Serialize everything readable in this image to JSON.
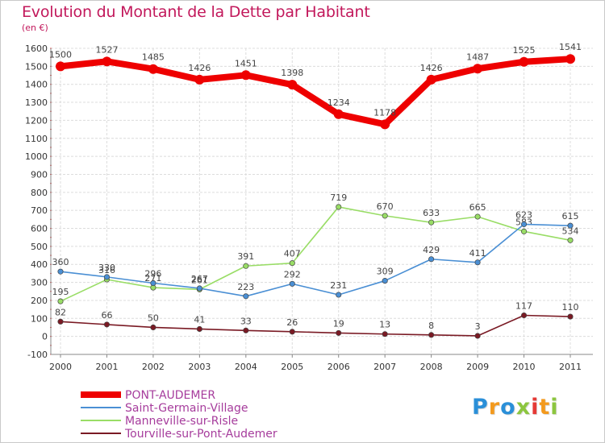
{
  "chart_data": {
    "type": "line",
    "title": "Evolution du Montant de la Dette par Habitant",
    "subtitle": "(en €)",
    "categories": [
      "2000",
      "2001",
      "2002",
      "2003",
      "2004",
      "2005",
      "2006",
      "2007",
      "2008",
      "2009",
      "2010",
      "2011"
    ],
    "ylim": [
      -100,
      1600
    ],
    "yticks": [
      -100,
      0,
      100,
      200,
      300,
      400,
      500,
      600,
      700,
      800,
      900,
      1000,
      1100,
      1200,
      1300,
      1400,
      1500,
      1600
    ],
    "grid": true,
    "legend_position": "bottom-left",
    "series": [
      {
        "name": "PONT-AUDEMER",
        "color": "#ee0000",
        "values": [
          1500,
          1527,
          1485,
          1426,
          1451,
          1398,
          1234,
          1178,
          1426,
          1487,
          1525,
          1541
        ]
      },
      {
        "name": "Saint-Germain-Village",
        "color": "#4a8fd4",
        "values": [
          360,
          330,
          296,
          267,
          223,
          292,
          231,
          309,
          429,
          411,
          623,
          615
        ]
      },
      {
        "name": "Manneville-sur-Risle",
        "color": "#99dd66",
        "values": [
          195,
          316,
          271,
          261,
          391,
          407,
          719,
          670,
          633,
          665,
          583,
          534
        ]
      },
      {
        "name": "Tourville-sur-Pont-Audemer",
        "color": "#7a1a24",
        "values": [
          82,
          66,
          50,
          41,
          33,
          26,
          19,
          13,
          8,
          3,
          117,
          110
        ]
      }
    ]
  },
  "logo": {
    "letters": [
      "P",
      "r",
      "o",
      "x",
      "i",
      "t",
      "i"
    ],
    "colors": [
      "#2a8fd8",
      "#f39a1e",
      "#2a8fd8",
      "#8cc63f",
      "#e53935",
      "#f39a1e",
      "#8cc63f"
    ]
  }
}
